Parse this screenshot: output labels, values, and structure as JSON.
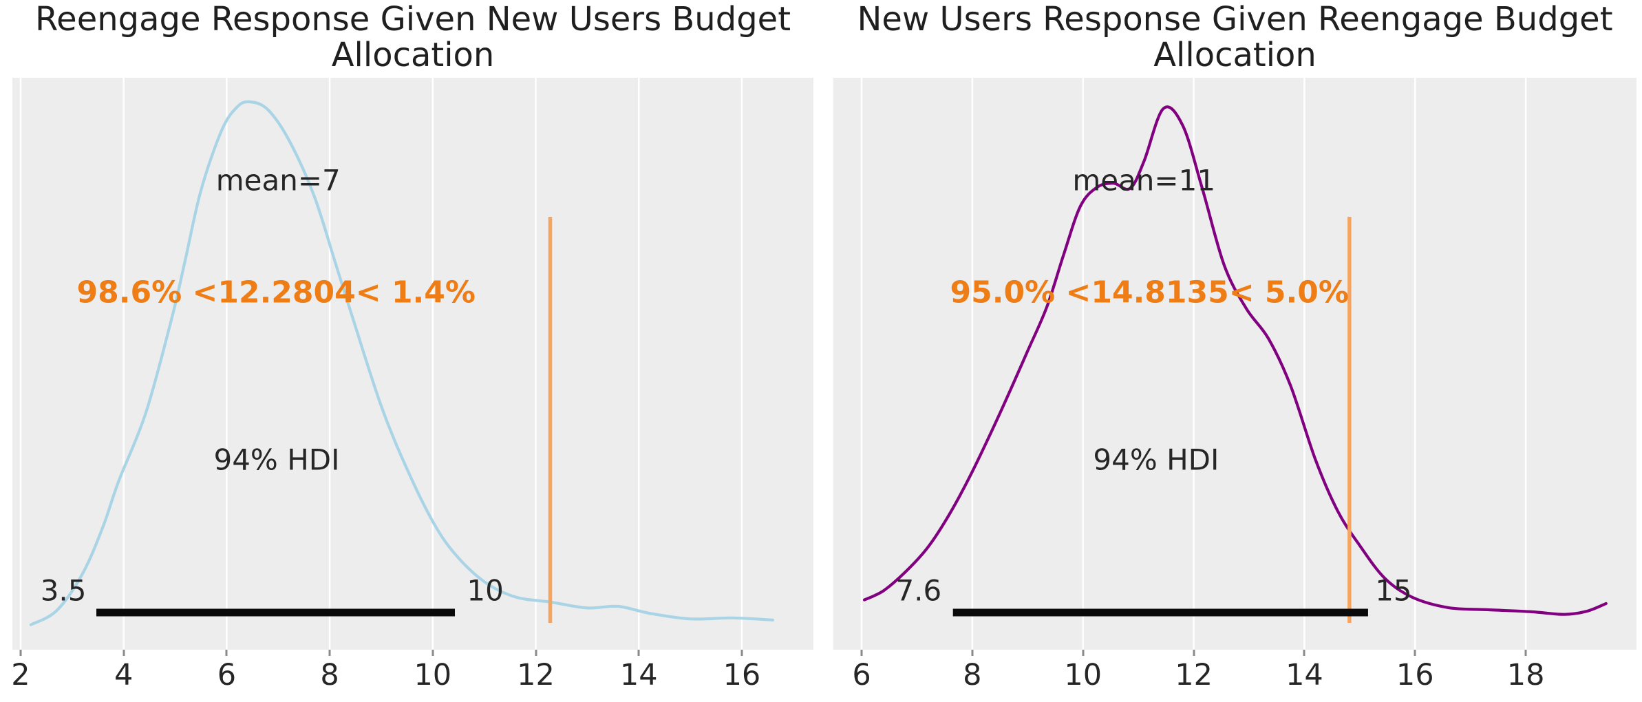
{
  "figure": {
    "background": "#ffffff",
    "panel_bg": "#EDEDED",
    "grid_color": "#ffffff",
    "text_color": "#262626",
    "ref_text_color": "#EE7D16",
    "ref_line_color": "#F5A55F",
    "hdi_line_color": "#0A0A0A"
  },
  "chart_data": [
    {
      "type": "area",
      "kind": "posterior-kde",
      "title": "Reengage Response Given New Users Budget Allocation",
      "title_lines": [
        "Reengage Response Given New Users Budget",
        "Allocation"
      ],
      "curve_color": "#A9D4E6",
      "x_ticks": [
        2,
        4,
        6,
        8,
        10,
        12,
        14,
        16
      ],
      "xlim": [
        1.84,
        17.39
      ],
      "grid": true,
      "legend": "none",
      "kde": {
        "x": [
          2.2,
          2.7,
          3.2,
          3.6,
          3.9,
          4.43,
          4.94,
          5.19,
          5.5,
          5.9,
          6.2,
          6.45,
          6.8,
          7.22,
          7.7,
          8.1,
          8.44,
          9.0,
          9.5,
          10.0,
          10.43,
          11.0,
          11.6,
          12.3,
          13.0,
          13.6,
          14.2,
          15.0,
          15.8,
          16.6
        ],
        "density": [
          0.003,
          0.03,
          0.1,
          0.19,
          0.276,
          0.407,
          0.59,
          0.696,
          0.831,
          0.945,
          0.99,
          1.0,
          0.985,
          0.925,
          0.82,
          0.696,
          0.59,
          0.42,
          0.3,
          0.2,
          0.138,
          0.085,
          0.056,
          0.046,
          0.035,
          0.038,
          0.025,
          0.014,
          0.016,
          0.012
        ]
      },
      "mean": {
        "text": "mean=7",
        "value": 7,
        "text_x": 7
      },
      "ref_val": {
        "text": "98.6% <12.2804< 1.4%",
        "value": 12.2804,
        "pct_below": "98.6%",
        "pct_above": "1.4%",
        "text_x": 6.96
      },
      "hdi": {
        "label": "94% HDI",
        "lower": 3.47,
        "upper": 10.43,
        "lower_text": "3.5",
        "upper_text": "10",
        "label_x": 6.97,
        "lower_text_x": 2.83,
        "upper_text_x": 11.02
      }
    },
    {
      "type": "area",
      "kind": "posterior-kde",
      "title": "New Users Response Given Reengage Budget Allocation",
      "title_lines": [
        "New Users Response Given Reengage Budget",
        "Allocation"
      ],
      "curve_color": "#800080",
      "x_ticks": [
        6,
        8,
        10,
        12,
        14,
        16,
        18
      ],
      "xlim": [
        5.49,
        20.0
      ],
      "grid": true,
      "legend": "none",
      "kde": {
        "x": [
          6.05,
          6.4,
          6.8,
          7.2,
          7.6,
          8.0,
          8.5,
          9.0,
          9.35,
          9.65,
          9.95,
          10.25,
          10.55,
          10.85,
          11.1,
          11.45,
          11.8,
          12.15,
          12.55,
          12.95,
          13.35,
          13.75,
          14.2,
          14.6,
          15.0,
          15.45,
          15.95,
          16.6,
          17.3,
          18.1,
          18.7,
          19.1,
          19.45
        ],
        "density": [
          0.051,
          0.069,
          0.106,
          0.153,
          0.219,
          0.299,
          0.412,
          0.532,
          0.618,
          0.718,
          0.811,
          0.848,
          0.856,
          0.846,
          0.898,
          1.0,
          0.968,
          0.848,
          0.698,
          0.614,
          0.556,
          0.465,
          0.322,
          0.223,
          0.156,
          0.093,
          0.056,
          0.036,
          0.032,
          0.028,
          0.023,
          0.029,
          0.044
        ]
      },
      "mean": {
        "text": "mean=11",
        "value": 11,
        "text_x": 11.1
      },
      "ref_val": {
        "text": "95.0% <14.8135< 5.0%",
        "value": 14.8135,
        "pct_below": "95.0%",
        "pct_above": "5.0%",
        "text_x": 11.2
      },
      "hdi": {
        "label": "94% HDI",
        "lower": 7.65,
        "upper": 15.15,
        "lower_text": "7.6",
        "upper_text": "15",
        "label_x": 11.32,
        "lower_text_x": 7.03,
        "upper_text_x": 15.61
      }
    }
  ]
}
